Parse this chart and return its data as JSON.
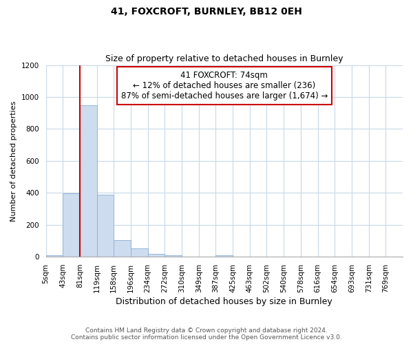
{
  "title": "41, FOXCROFT, BURNLEY, BB12 0EH",
  "subtitle": "Size of property relative to detached houses in Burnley",
  "xlabel": "Distribution of detached houses by size in Burnley",
  "ylabel": "Number of detached properties",
  "bar_labels": [
    "5sqm",
    "43sqm",
    "81sqm",
    "119sqm",
    "158sqm",
    "196sqm",
    "234sqm",
    "272sqm",
    "310sqm",
    "349sqm",
    "387sqm",
    "425sqm",
    "463sqm",
    "502sqm",
    "540sqm",
    "578sqm",
    "616sqm",
    "654sqm",
    "693sqm",
    "731sqm",
    "769sqm"
  ],
  "bar_heights": [
    10,
    395,
    950,
    390,
    105,
    53,
    20,
    8,
    3,
    0,
    10,
    0,
    0,
    0,
    0,
    0,
    0,
    0,
    0,
    0,
    0
  ],
  "bar_color": "#cddcee",
  "bar_edge_color": "#8aafd4",
  "vline_x_index": 2,
  "property_line_label": "41 FOXCROFT: 74sqm",
  "annotation_line1": "← 12% of detached houses are smaller (236)",
  "annotation_line2": "87% of semi-detached houses are larger (1,674) →",
  "annotation_box_color": "#ffffff",
  "annotation_box_edge_color": "#cc0000",
  "vline_color": "#cc0000",
  "ylim": [
    0,
    1200
  ],
  "yticks": [
    0,
    200,
    400,
    600,
    800,
    1000,
    1200
  ],
  "footer_line1": "Contains HM Land Registry data © Crown copyright and database right 2024.",
  "footer_line2": "Contains public sector information licensed under the Open Government Licence v3.0.",
  "background_color": "#ffffff",
  "grid_color": "#c8d8e8",
  "title_fontsize": 10,
  "subtitle_fontsize": 9,
  "annotation_fontsize": 8.5,
  "ylabel_fontsize": 8,
  "xlabel_fontsize": 9,
  "tick_fontsize": 7.5,
  "footer_fontsize": 6.5
}
